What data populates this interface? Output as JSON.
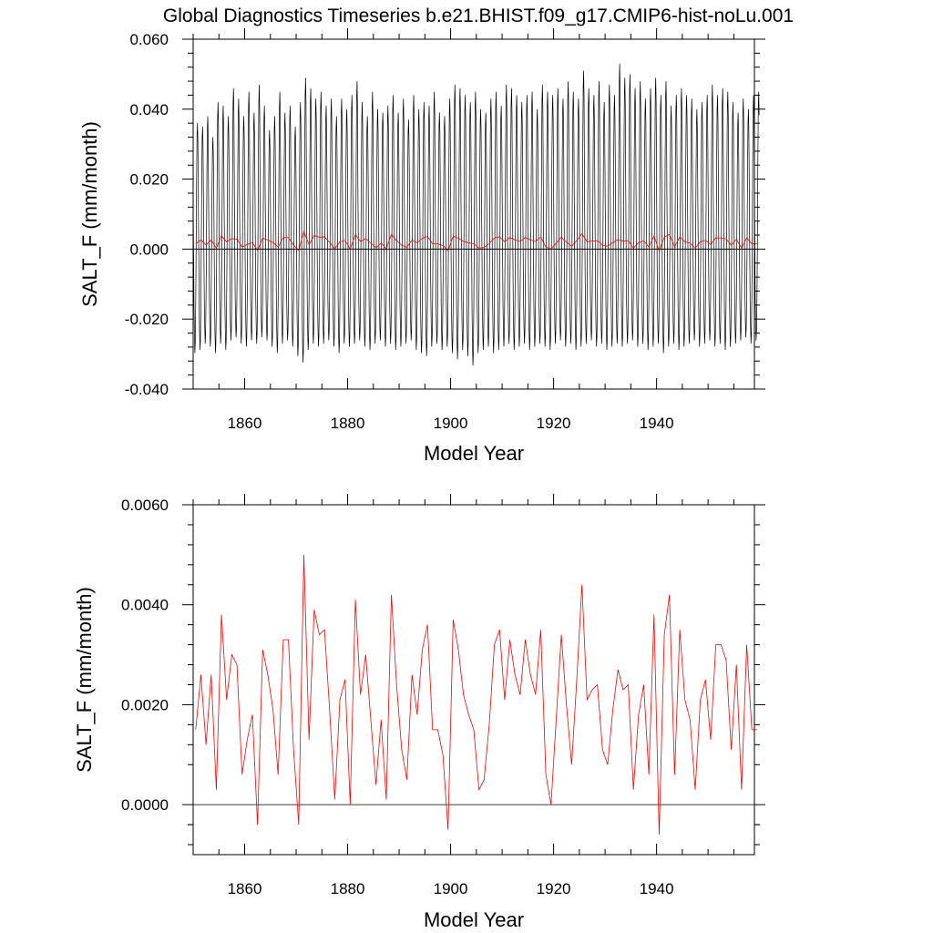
{
  "title": "Global Diagnostics Timeseries b.e21.BHIST.f09_g17.CMIP6-hist-noLu.001",
  "colors": {
    "monthly": "#000000",
    "annual": "#ff0000",
    "zero_line": "#000000"
  },
  "chart_data": [
    {
      "type": "line",
      "name": "top-panel",
      "xlabel": "Model Year",
      "ylabel": "SALT_F (mm/month)",
      "xlim": [
        1850,
        1959
      ],
      "ylim": [
        -0.04,
        0.06
      ],
      "x_ticks": [
        1860,
        1880,
        1900,
        1920,
        1940
      ],
      "x_tick_labels": [
        "1860",
        "1880",
        "1900",
        "1920",
        "1940"
      ],
      "y_ticks": [
        -0.04,
        -0.02,
        0.0,
        0.02,
        0.04,
        0.06
      ],
      "y_tick_labels": [
        "-0.040",
        "-0.020",
        "0.000",
        "0.020",
        "0.040",
        "0.060"
      ],
      "reference_line": 0,
      "grid": false,
      "monthly_series": {
        "resolution": "monthly",
        "seasonal_cycle_multiplier": [
          0.4,
          0.0,
          -0.5,
          -0.75,
          -0.9,
          -0.8,
          -0.45,
          0.05,
          0.55,
          0.9,
          1.0,
          0.85
        ],
        "annual_peak_max": [
          0.036,
          0.035,
          0.038,
          0.032,
          0.042,
          0.041,
          0.038,
          0.046,
          0.043,
          0.038,
          0.045,
          0.039,
          0.047,
          0.041,
          0.034,
          0.038,
          0.045,
          0.039,
          0.041,
          0.035,
          0.042,
          0.049,
          0.046,
          0.043,
          0.045,
          0.041,
          0.043,
          0.038,
          0.043,
          0.04,
          0.044,
          0.048,
          0.042,
          0.038,
          0.045,
          0.04,
          0.039,
          0.041,
          0.044,
          0.039,
          0.043,
          0.037,
          0.044,
          0.04,
          0.042,
          0.041,
          0.045,
          0.039,
          0.038,
          0.043,
          0.047,
          0.046,
          0.044,
          0.042,
          0.045,
          0.04,
          0.039,
          0.043,
          0.045,
          0.041,
          0.047,
          0.046,
          0.044,
          0.042,
          0.044,
          0.045,
          0.04,
          0.047,
          0.045,
          0.044,
          0.046,
          0.043,
          0.048,
          0.045,
          0.043,
          0.051,
          0.046,
          0.044,
          0.048,
          0.042,
          0.047,
          0.044,
          0.053,
          0.049,
          0.05,
          0.046,
          0.048,
          0.043,
          0.046,
          0.049,
          0.044,
          0.048,
          0.041,
          0.044,
          0.046,
          0.044,
          0.043,
          0.04,
          0.042,
          0.044,
          0.047,
          0.044,
          0.046,
          0.045,
          0.042,
          0.039,
          0.043,
          0.04,
          0.044,
          0.045
        ],
        "annual_trough_min": [
          -0.033,
          -0.032,
          -0.03,
          -0.031,
          -0.033,
          -0.03,
          -0.032,
          -0.029,
          -0.028,
          -0.03,
          -0.031,
          -0.029,
          -0.03,
          -0.028,
          -0.029,
          -0.031,
          -0.033,
          -0.03,
          -0.029,
          -0.031,
          -0.034,
          -0.036,
          -0.032,
          -0.03,
          -0.031,
          -0.03,
          -0.029,
          -0.031,
          -0.033,
          -0.03,
          -0.031,
          -0.03,
          -0.029,
          -0.031,
          -0.032,
          -0.03,
          -0.029,
          -0.031,
          -0.03,
          -0.032,
          -0.031,
          -0.03,
          -0.029,
          -0.032,
          -0.033,
          -0.034,
          -0.031,
          -0.03,
          -0.032,
          -0.031,
          -0.033,
          -0.035,
          -0.032,
          -0.034,
          -0.037,
          -0.033,
          -0.032,
          -0.031,
          -0.033,
          -0.032,
          -0.031,
          -0.03,
          -0.032,
          -0.031,
          -0.03,
          -0.032,
          -0.031,
          -0.03,
          -0.031,
          -0.032,
          -0.03,
          -0.029,
          -0.031,
          -0.03,
          -0.032,
          -0.031,
          -0.03,
          -0.029,
          -0.031,
          -0.03,
          -0.032,
          -0.031,
          -0.03,
          -0.031,
          -0.03,
          -0.029,
          -0.031,
          -0.03,
          -0.032,
          -0.031,
          -0.03,
          -0.033,
          -0.031,
          -0.03,
          -0.032,
          -0.031,
          -0.03,
          -0.029,
          -0.031,
          -0.03,
          -0.029,
          -0.031,
          -0.03,
          -0.032,
          -0.031,
          -0.03,
          -0.029,
          -0.028,
          -0.03,
          -0.029
        ]
      }
    },
    {
      "type": "line",
      "name": "bottom-panel",
      "xlabel": "Model Year",
      "ylabel": "SALT_F (mm/month)",
      "xlim": [
        1850,
        1959
      ],
      "ylim": [
        -0.001,
        0.006
      ],
      "x_ticks": [
        1860,
        1880,
        1900,
        1920,
        1940
      ],
      "x_tick_labels": [
        "1860",
        "1880",
        "1900",
        "1920",
        "1940"
      ],
      "y_ticks": [
        0.0,
        0.002,
        0.004,
        0.006
      ],
      "y_tick_labels": [
        "0.0000",
        "0.0020",
        "0.0040",
        "0.0060"
      ],
      "reference_line": 0,
      "grid": false
    }
  ],
  "annual_mean": {
    "x": [
      1850,
      1851,
      1852,
      1853,
      1854,
      1855,
      1856,
      1857,
      1858,
      1859,
      1860,
      1861,
      1862,
      1863,
      1864,
      1865,
      1866,
      1867,
      1868,
      1869,
      1870,
      1871,
      1872,
      1873,
      1874,
      1875,
      1876,
      1877,
      1878,
      1879,
      1880,
      1881,
      1882,
      1883,
      1884,
      1885,
      1886,
      1887,
      1888,
      1889,
      1890,
      1891,
      1892,
      1893,
      1894,
      1895,
      1896,
      1897,
      1898,
      1899,
      1900,
      1901,
      1902,
      1903,
      1904,
      1905,
      1906,
      1907,
      1908,
      1909,
      1910,
      1911,
      1912,
      1913,
      1914,
      1915,
      1916,
      1917,
      1918,
      1919,
      1920,
      1921,
      1922,
      1923,
      1924,
      1925,
      1926,
      1927,
      1928,
      1929,
      1930,
      1931,
      1932,
      1933,
      1934,
      1935,
      1936,
      1937,
      1938,
      1939,
      1940,
      1941,
      1942,
      1943,
      1944,
      1945,
      1946,
      1947,
      1948,
      1949,
      1950,
      1951,
      1952,
      1953,
      1954,
      1955,
      1956,
      1957,
      1958,
      1959
    ],
    "y": [
      0.0015,
      0.0026,
      0.0012,
      0.0026,
      0.0003,
      0.0038,
      0.0021,
      0.003,
      0.0028,
      0.0006,
      0.0013,
      0.0018,
      -0.0004,
      0.0031,
      0.0026,
      0.0019,
      0.0006,
      0.0033,
      0.0033,
      0.0011,
      -0.0004,
      0.005,
      0.0013,
      0.0039,
      0.0034,
      0.0035,
      0.0019,
      0.0001,
      0.0021,
      0.0025,
      -0.0,
      0.0041,
      0.0022,
      0.003,
      0.0017,
      0.0004,
      0.0017,
      0.0001,
      0.0042,
      0.0024,
      0.0011,
      0.0005,
      0.0026,
      0.0018,
      0.0031,
      0.0036,
      0.0015,
      0.0015,
      0.001,
      -0.0005,
      0.0037,
      0.0031,
      0.0022,
      0.0018,
      0.0015,
      0.0003,
      0.0005,
      0.0016,
      0.0032,
      0.0035,
      0.0021,
      0.0033,
      0.0026,
      0.0022,
      0.0033,
      0.0026,
      0.0022,
      0.0035,
      0.0006,
      -0.0,
      0.0017,
      0.0034,
      0.002,
      0.0008,
      0.0025,
      0.0044,
      0.0021,
      0.0023,
      0.0024,
      0.0011,
      0.0008,
      0.0019,
      0.0027,
      0.0023,
      0.0024,
      0.0003,
      0.0018,
      0.0024,
      0.0006,
      0.0038,
      -0.0006,
      0.0034,
      0.0042,
      0.0006,
      0.0035,
      0.0021,
      0.0017,
      0.0003,
      0.0021,
      0.0025,
      0.0013,
      0.0032,
      0.0032,
      0.0029,
      0.0011,
      0.0028,
      0.0003,
      0.0032,
      0.0015,
      0.0015
    ]
  }
}
